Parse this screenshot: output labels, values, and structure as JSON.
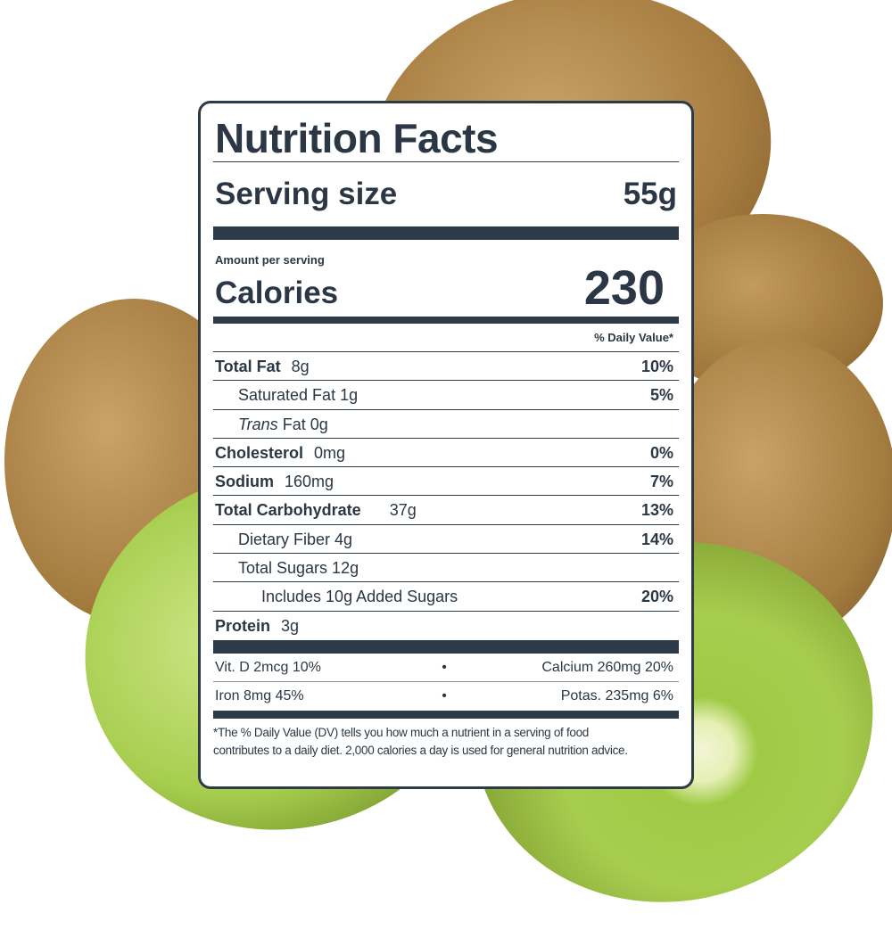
{
  "label": {
    "title": "Nutrition Facts",
    "serving_label": "Serving size",
    "serving_value": "55g",
    "amount_per_serving": "Amount per serving",
    "calories_label": "Calories",
    "calories_value": "230",
    "dv_header": "% Daily Value*",
    "rows": [
      {
        "name": "Total Fat",
        "amount": "8g",
        "dv": "10%"
      },
      {
        "name": "Saturated Fat 1g",
        "dv": "5%"
      },
      {
        "name_italic": "Trans",
        "name": "Fat 0g"
      },
      {
        "name": "Cholesterol",
        "amount": "0mg",
        "dv": "0%"
      },
      {
        "name": "Sodium",
        "amount": "160mg",
        "dv": "7%"
      },
      {
        "name": "Total Carbohydrate",
        "amount": "37g",
        "dv": "13%"
      },
      {
        "name": "Dietary Fiber 4g",
        "dv": "14%"
      },
      {
        "name": "Total Sugars 12g"
      },
      {
        "name": "Includes 10g Added Sugars",
        "dv": "20%"
      },
      {
        "name": "Protein",
        "amount": "3g"
      }
    ],
    "vitamins": [
      {
        "left": "Vit. D 2mcg 10%",
        "right": "Calcium 260mg 20%"
      },
      {
        "left": "Iron 8mg 45%",
        "right": "Potas. 235mg 6%"
      }
    ],
    "separator": "•",
    "footnote_1": "*The % Daily Value (DV) tells you how much a nutrient in a serving of food",
    "footnote_2": "contributes to a daily diet. 2,000 calories a day is used for general nutrition advice."
  }
}
